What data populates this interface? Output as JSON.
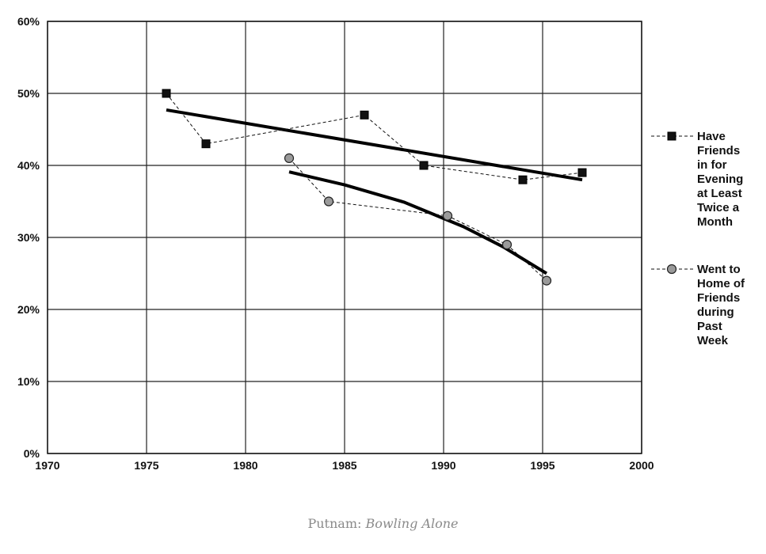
{
  "caption": {
    "author": "Putnam:",
    "title": "Bowling Alone"
  },
  "chart_data": {
    "type": "line",
    "xlim": [
      1970,
      2000
    ],
    "ylim": [
      0,
      60
    ],
    "x_ticks": [
      "1970",
      "1975",
      "1980",
      "1985",
      "1990",
      "1995",
      "2000"
    ],
    "y_ticks": [
      "0%",
      "10%",
      "20%",
      "30%",
      "40%",
      "50%",
      "60%"
    ],
    "grid": true,
    "legend_position": "right",
    "series": [
      {
        "name_lines": [
          "Have",
          "Friends",
          "in for",
          "Evening",
          "at Least",
          "Twice a",
          "Month"
        ],
        "marker": "square",
        "marker_color": "#111111",
        "x": [
          1976,
          1978,
          1986,
          1989,
          1994,
          1997
        ],
        "y": [
          50,
          43,
          47,
          40,
          38,
          39
        ],
        "trend": {
          "x": [
            1976,
            1997
          ],
          "y": [
            47.7,
            38.0
          ]
        }
      },
      {
        "name_lines": [
          "Went to",
          "Home of",
          "Friends",
          "during",
          "Past",
          "Week"
        ],
        "marker": "circle",
        "marker_color": "#9a9a9a",
        "x": [
          1982.2,
          1984.2,
          1990.2,
          1993.2,
          1995.2
        ],
        "y": [
          41,
          35,
          33,
          29,
          24
        ],
        "trend": {
          "x": [
            1982.2,
            1985,
            1988,
            1991,
            1993,
            1995.2
          ],
          "y": [
            39.1,
            37.3,
            34.9,
            31.5,
            28.7,
            25.0
          ]
        }
      }
    ]
  }
}
